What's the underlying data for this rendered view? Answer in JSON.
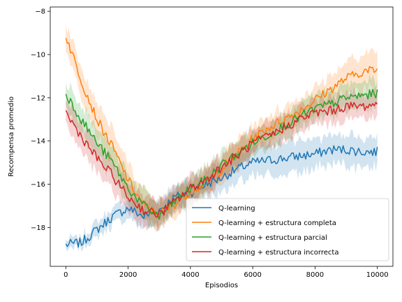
{
  "chart_data": {
    "type": "line",
    "title": "",
    "xlabel": "Episodios",
    "ylabel": "Recompensa promedio",
    "xlim": [
      -500,
      10500
    ],
    "ylim": [
      -19.8,
      -7.8
    ],
    "xticks": [
      0,
      2000,
      4000,
      6000,
      8000,
      10000
    ],
    "yticks": [
      -18,
      -16,
      -14,
      -12,
      -10,
      -8
    ],
    "xtick_labels": [
      "0",
      "2000",
      "4000",
      "6000",
      "8000",
      "10000"
    ],
    "ytick_labels": [
      "−18",
      "−16",
      "−14",
      "−12",
      "−10",
      "−8"
    ],
    "grid": false,
    "legend_position": "lower-right",
    "shaded_band": "mean ± deviation",
    "series": [
      {
        "name": "Q-learning",
        "color": "#1f77b4",
        "x": [
          0,
          500,
          1000,
          1500,
          2000,
          2500,
          3000,
          3500,
          4000,
          4500,
          5000,
          5500,
          6000,
          6500,
          7000,
          7500,
          8000,
          8500,
          9000,
          9500,
          10000
        ],
        "values": [
          -18.8,
          -18.7,
          -18.1,
          -17.5,
          -17.1,
          -17.5,
          -17.2,
          -16.6,
          -16.4,
          -16.0,
          -15.7,
          -15.3,
          -15.0,
          -14.9,
          -14.8,
          -14.7,
          -14.6,
          -14.4,
          -14.4,
          -14.5,
          -14.5
        ],
        "band": [
          0.25,
          0.3,
          0.35,
          0.4,
          0.45,
          0.5,
          0.55,
          0.55,
          0.6,
          0.6,
          0.65,
          0.65,
          0.7,
          0.7,
          0.7,
          0.7,
          0.7,
          0.7,
          0.7,
          0.7,
          0.7
        ]
      },
      {
        "name": "Q-learning + estructura completa",
        "color": "#ff7f0e",
        "x": [
          0,
          500,
          1000,
          1500,
          2000,
          2500,
          3000,
          3500,
          4000,
          4500,
          5000,
          5500,
          6000,
          6500,
          7000,
          7500,
          8000,
          8500,
          9000,
          9500,
          10000
        ],
        "values": [
          -9.1,
          -11.2,
          -13.0,
          -14.3,
          -15.8,
          -17.0,
          -17.4,
          -16.9,
          -16.3,
          -16.0,
          -15.3,
          -14.6,
          -13.9,
          -13.4,
          -13.0,
          -12.6,
          -12.1,
          -11.6,
          -11.1,
          -10.8,
          -10.7
        ],
        "band": [
          0.6,
          0.8,
          0.8,
          0.8,
          0.8,
          0.7,
          0.6,
          0.6,
          0.6,
          0.6,
          0.6,
          0.6,
          0.6,
          0.6,
          0.6,
          0.6,
          0.6,
          0.6,
          0.7,
          0.8,
          0.9
        ]
      },
      {
        "name": "Q-learning + estructura parcial",
        "color": "#2ca02c",
        "x": [
          0,
          500,
          1000,
          1500,
          2000,
          2500,
          3000,
          3500,
          4000,
          4500,
          5000,
          5500,
          6000,
          6500,
          7000,
          7500,
          8000,
          8500,
          9000,
          9500,
          10000
        ],
        "values": [
          -11.8,
          -13.0,
          -14.1,
          -15.0,
          -16.2,
          -17.0,
          -17.5,
          -16.8,
          -16.2,
          -15.8,
          -15.1,
          -14.6,
          -14.1,
          -13.7,
          -13.3,
          -12.9,
          -12.5,
          -12.3,
          -12.0,
          -11.9,
          -11.8
        ],
        "band": [
          0.6,
          0.7,
          0.7,
          0.7,
          0.7,
          0.7,
          0.6,
          0.6,
          0.6,
          0.6,
          0.6,
          0.6,
          0.6,
          0.6,
          0.6,
          0.6,
          0.6,
          0.6,
          0.6,
          0.6,
          0.6
        ]
      },
      {
        "name": "Q-learning + estructura incorrecta",
        "color": "#d62728",
        "x": [
          0,
          500,
          1000,
          1500,
          2000,
          2500,
          3000,
          3500,
          4000,
          4500,
          5000,
          5500,
          6000,
          6500,
          7000,
          7500,
          8000,
          8500,
          9000,
          9500,
          10000
        ],
        "values": [
          -12.7,
          -13.8,
          -14.8,
          -15.6,
          -16.6,
          -17.2,
          -17.4,
          -16.8,
          -16.2,
          -15.8,
          -15.2,
          -14.7,
          -14.1,
          -13.8,
          -13.4,
          -13.0,
          -12.7,
          -12.6,
          -12.4,
          -12.4,
          -12.3
        ],
        "band": [
          0.6,
          0.7,
          0.7,
          0.7,
          0.7,
          0.7,
          0.6,
          0.6,
          0.6,
          0.6,
          0.6,
          0.6,
          0.6,
          0.6,
          0.6,
          0.6,
          0.6,
          0.6,
          0.6,
          0.6,
          0.6
        ]
      }
    ]
  }
}
